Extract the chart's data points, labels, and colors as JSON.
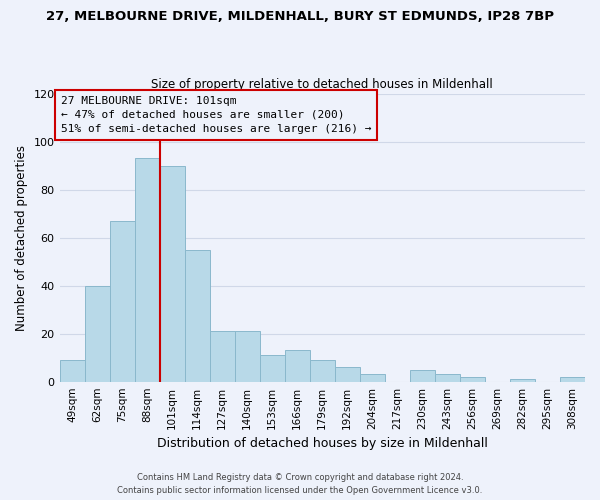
{
  "title_line1": "27, MELBOURNE DRIVE, MILDENHALL, BURY ST EDMUNDS, IP28 7BP",
  "title_line2": "Size of property relative to detached houses in Mildenhall",
  "xlabel": "Distribution of detached houses by size in Mildenhall",
  "ylabel": "Number of detached properties",
  "categories": [
    "49sqm",
    "62sqm",
    "75sqm",
    "88sqm",
    "101sqm",
    "114sqm",
    "127sqm",
    "140sqm",
    "153sqm",
    "166sqm",
    "179sqm",
    "192sqm",
    "204sqm",
    "217sqm",
    "230sqm",
    "243sqm",
    "256sqm",
    "269sqm",
    "282sqm",
    "295sqm",
    "308sqm"
  ],
  "values": [
    9,
    40,
    67,
    93,
    90,
    55,
    21,
    21,
    11,
    13,
    9,
    6,
    3,
    0,
    5,
    3,
    2,
    0,
    1,
    0,
    2
  ],
  "bar_color": "#b8d9e8",
  "bar_edge_color": "#8ab8cc",
  "highlight_index": 4,
  "highlight_line_color": "#cc0000",
  "annotation_title": "27 MELBOURNE DRIVE: 101sqm",
  "annotation_line1": "← 47% of detached houses are smaller (200)",
  "annotation_line2": "51% of semi-detached houses are larger (216) →",
  "annotation_box_edge_color": "#cc0000",
  "ylim": [
    0,
    120
  ],
  "yticks": [
    0,
    20,
    40,
    60,
    80,
    100,
    120
  ],
  "footer_line1": "Contains HM Land Registry data © Crown copyright and database right 2024.",
  "footer_line2": "Contains public sector information licensed under the Open Government Licence v3.0.",
  "background_color": "#eef2fb"
}
